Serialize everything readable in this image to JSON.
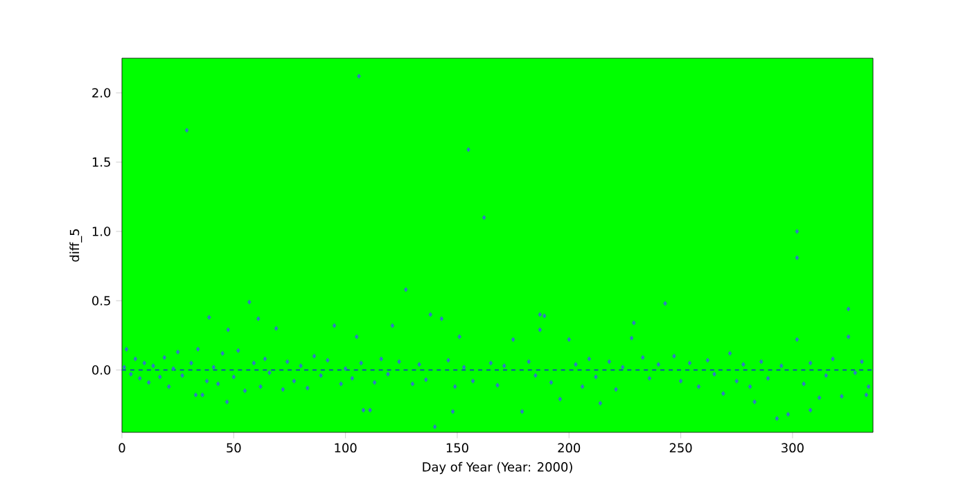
{
  "chart_data": {
    "type": "scatter",
    "xlabel": "Day of Year (Year: 2000)",
    "ylabel": "diff_5",
    "xlim": [
      0,
      336
    ],
    "ylim": [
      -0.45,
      2.25
    ],
    "xticks": [
      0,
      50,
      100,
      150,
      200,
      250,
      300
    ],
    "yticks": [
      {
        "value": 0,
        "label": "0.0"
      },
      {
        "value": 0.5,
        "label": "0.5"
      },
      {
        "value": 1,
        "label": "1.0"
      },
      {
        "value": 1.5,
        "label": "1.5"
      },
      {
        "value": 2,
        "label": "2.0"
      }
    ],
    "marker": "diamond",
    "grid": false,
    "ref_lines": [
      {
        "axis": "y",
        "value": 0,
        "color": "#1030d0",
        "line_style": "dashed"
      }
    ],
    "series": [
      {
        "color": "#2e7bc4",
        "x": [
          1,
          2,
          4,
          6,
          8,
          10,
          12,
          14,
          17,
          19,
          21,
          23,
          25,
          27,
          31,
          34,
          38,
          41,
          43,
          45,
          50,
          52,
          59,
          62,
          64,
          66,
          72,
          74,
          77,
          80,
          83,
          86,
          89,
          92,
          98,
          100,
          103,
          107,
          113,
          116,
          119,
          124,
          130,
          133,
          136,
          146,
          149,
          153,
          157,
          165,
          168,
          171,
          182,
          185,
          192,
          203,
          206,
          209,
          212,
          218,
          221,
          224,
          233,
          236,
          240,
          247,
          250,
          254,
          258,
          262,
          265,
          272,
          275,
          278,
          281,
          286,
          289,
          295,
          305,
          308,
          315,
          318,
          328,
          331,
          334,
          106,
          29,
          155,
          162,
          302,
          302,
          127,
          57,
          39,
          138,
          143,
          121,
          47.5,
          61,
          95,
          151,
          105,
          69,
          33,
          36,
          47,
          108,
          111,
          140,
          148,
          55,
          243,
          187,
          189,
          187,
          229,
          228,
          325,
          325,
          302,
          175,
          200,
          179,
          293,
          298,
          308,
          214,
          333,
          283,
          196,
          322,
          269,
          312
        ],
        "values": [
          0.02,
          0.15,
          -0.03,
          0.08,
          -0.06,
          0.05,
          -0.09,
          0.03,
          -0.05,
          0.09,
          -0.12,
          0.01,
          0.13,
          -0.04,
          0.05,
          0.15,
          -0.08,
          0.02,
          -0.1,
          0.12,
          -0.05,
          0.14,
          0.05,
          -0.12,
          0.08,
          -0.02,
          -0.14,
          0.06,
          -0.08,
          0.03,
          -0.13,
          0.1,
          -0.04,
          0.07,
          -0.1,
          0.01,
          -0.06,
          0.05,
          -0.09,
          0.08,
          -0.03,
          0.06,
          -0.1,
          0.04,
          -0.07,
          0.07,
          -0.12,
          0.02,
          -0.08,
          0.05,
          -0.11,
          0.03,
          0.06,
          -0.04,
          -0.09,
          0.04,
          -0.12,
          0.08,
          -0.05,
          0.06,
          -0.14,
          0.02,
          0.09,
          -0.06,
          0.04,
          0.1,
          -0.08,
          0.05,
          -0.12,
          0.07,
          -0.03,
          0.12,
          -0.08,
          0.04,
          -0.12,
          0.06,
          -0.06,
          0.03,
          -0.1,
          0.05,
          -0.04,
          0.08,
          -0.02,
          0.06,
          -0.12,
          2.12,
          1.73,
          1.59,
          1.1,
          1.0,
          0.81,
          0.58,
          0.49,
          0.38,
          0.4,
          0.37,
          0.32,
          0.29,
          0.37,
          0.32,
          0.24,
          0.24,
          0.3,
          -0.18,
          -0.18,
          -0.23,
          -0.29,
          -0.29,
          -0.41,
          -0.3,
          -0.15,
          0.48,
          0.4,
          0.39,
          0.29,
          0.34,
          0.23,
          0.44,
          0.24,
          0.22,
          0.22,
          0.22,
          -0.3,
          -0.35,
          -0.32,
          -0.29,
          -0.24,
          -0.18,
          -0.23,
          -0.21,
          -0.19,
          -0.17,
          -0.2
        ]
      }
    ]
  }
}
